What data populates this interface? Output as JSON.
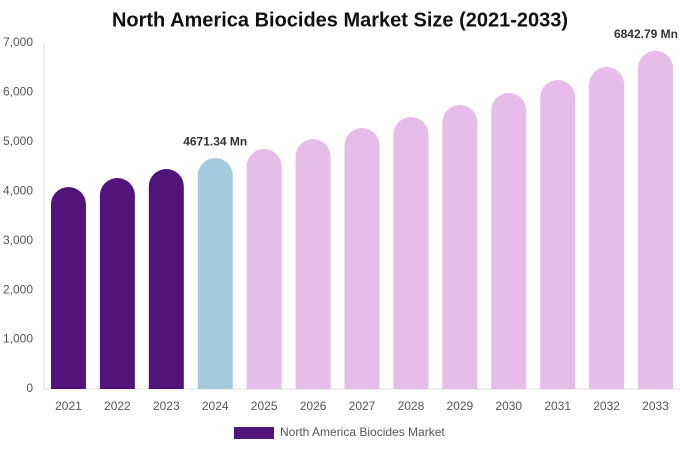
{
  "chart_data": {
    "type": "bar",
    "title": "North America Biocides Market Size (2021-2033)",
    "categories": [
      "2021",
      "2022",
      "2023",
      "2024",
      "2025",
      "2026",
      "2027",
      "2028",
      "2029",
      "2030",
      "2031",
      "2032",
      "2033"
    ],
    "series": [
      {
        "name": "North America Biocides Market",
        "color": "#52137a",
        "values": [
          4087,
          4269,
          4451,
          4671.34,
          4855,
          5058,
          5280,
          5503,
          5745,
          5988,
          6251,
          6514,
          6842.79
        ],
        "value_labels": [
          null,
          null,
          null,
          "4671.34 Mn",
          null,
          null,
          null,
          null,
          null,
          null,
          null,
          null,
          "6842.79 Mn"
        ],
        "bar_colors": [
          "#52137a",
          "#52137a",
          "#52137a",
          "#a4cbe0",
          "#e6bde8",
          "#e6bde8",
          "#e6bde8",
          "#e6bde8",
          "#e6bde8",
          "#e6bde8",
          "#e6bde8",
          "#e6bde8",
          "#e6bde8"
        ]
      }
    ],
    "ylim": [
      0,
      7000
    ],
    "yticks": [
      0,
      {
        "value": 1000,
        "label": "1,000"
      },
      {
        "value": 2000,
        "label": "2,000"
      },
      {
        "value": 3000,
        "label": "3,000"
      },
      {
        "value": 4000,
        "label": "4,000"
      },
      {
        "value": 5000,
        "label": "5,000"
      },
      {
        "value": 6000,
        "label": "6,000"
      },
      {
        "value": 7000,
        "label": "7,000"
      }
    ],
    "grid": false
  }
}
